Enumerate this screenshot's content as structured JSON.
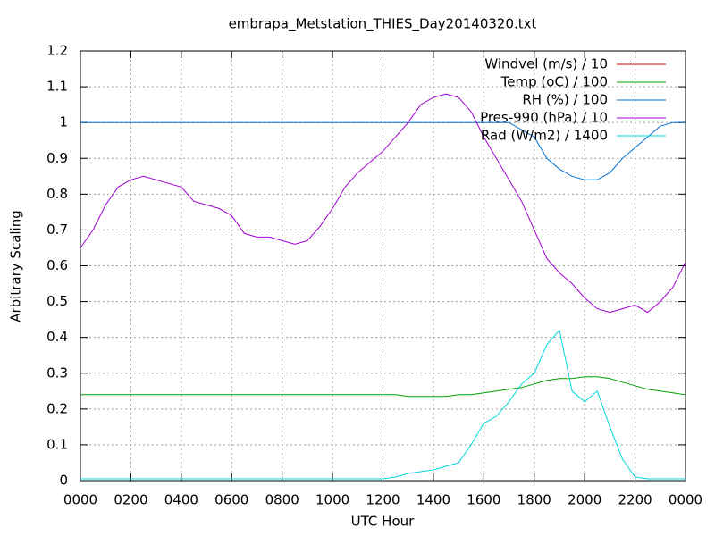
{
  "chart_data": {
    "type": "line",
    "title": "embrapa_Metstation_THIES_Day20140320.txt",
    "xlabel": "UTC Hour",
    "ylabel": "Arbitrary Scaling",
    "x": [
      0,
      0.5,
      1,
      1.5,
      2,
      2.5,
      3,
      3.5,
      4,
      4.5,
      5,
      5.5,
      6,
      6.5,
      7,
      7.5,
      8,
      8.5,
      9,
      9.5,
      10,
      10.5,
      11,
      11.5,
      12,
      12.5,
      13,
      13.5,
      14,
      14.5,
      15,
      15.5,
      16,
      16.5,
      17,
      17.5,
      18,
      18.5,
      19,
      19.5,
      20,
      20.5,
      21,
      21.5,
      22,
      22.5,
      23,
      23.5,
      24
    ],
    "series": [
      {
        "name": "Windvel (m/s) / 10",
        "color": "#e00000",
        "values": [
          null,
          null,
          null,
          null,
          null,
          null,
          null,
          null,
          null,
          null,
          null,
          null,
          null,
          null,
          null,
          null,
          null,
          null,
          null,
          null,
          null,
          null,
          null,
          null,
          null,
          null,
          null,
          null,
          null,
          null,
          null,
          null,
          null,
          null,
          null,
          null,
          null,
          null,
          null,
          null,
          null,
          null,
          null,
          null,
          null,
          null,
          null,
          null,
          null
        ]
      },
      {
        "name": "Temp (oC) / 100",
        "color": "#00a000",
        "values": [
          0.24,
          0.24,
          0.24,
          0.24,
          0.24,
          0.24,
          0.24,
          0.24,
          0.24,
          0.24,
          0.24,
          0.24,
          0.24,
          0.24,
          0.24,
          0.24,
          0.24,
          0.24,
          0.24,
          0.24,
          0.24,
          0.24,
          0.24,
          0.24,
          0.24,
          0.24,
          0.235,
          0.235,
          0.235,
          0.235,
          0.24,
          0.24,
          0.245,
          0.25,
          0.255,
          0.26,
          0.27,
          0.28,
          0.285,
          0.285,
          0.29,
          0.29,
          0.285,
          0.275,
          0.265,
          0.255,
          0.25,
          0.245,
          0.24
        ]
      },
      {
        "name": "RH (%) / 100",
        "color": "#0070d0",
        "values": [
          1,
          1,
          1,
          1,
          1,
          1,
          1,
          1,
          1,
          1,
          1,
          1,
          1,
          1,
          1,
          1,
          1,
          1,
          1,
          1,
          1,
          1,
          1,
          1,
          1,
          1,
          1,
          1,
          1,
          1,
          1,
          1,
          1,
          1,
          1,
          0.98,
          0.96,
          0.9,
          0.87,
          0.85,
          0.84,
          0.84,
          0.86,
          0.9,
          0.93,
          0.96,
          0.99,
          1,
          1
        ]
      },
      {
        "name": "Pres-990 (hPa) / 10",
        "color": "#a000d0",
        "values": [
          0.65,
          0.7,
          0.77,
          0.82,
          0.84,
          0.85,
          0.84,
          0.83,
          0.82,
          0.78,
          0.77,
          0.76,
          0.74,
          0.69,
          0.68,
          0.68,
          0.67,
          0.66,
          0.67,
          0.71,
          0.76,
          0.82,
          0.86,
          0.89,
          0.92,
          0.96,
          1,
          1.05,
          1.07,
          1.08,
          1.07,
          1.03,
          0.96,
          0.9,
          0.84,
          0.78,
          0.7,
          0.62,
          0.58,
          0.55,
          0.51,
          0.48,
          0.47,
          0.48,
          0.49,
          0.47,
          0.5,
          0.54,
          0.61
        ]
      },
      {
        "name": "Rad (W/m2) / 1400",
        "color": "#00d8e0",
        "values": [
          0.005,
          0.005,
          0.005,
          0.005,
          0.005,
          0.005,
          0.005,
          0.005,
          0.005,
          0.005,
          0.005,
          0.005,
          0.005,
          0.005,
          0.005,
          0.005,
          0.005,
          0.005,
          0.005,
          0.005,
          0.005,
          0.005,
          0.005,
          0.005,
          0.005,
          0.01,
          0.02,
          0.025,
          0.03,
          0.04,
          0.05,
          0.1,
          0.16,
          0.18,
          0.22,
          0.27,
          0.3,
          0.38,
          0.42,
          0.25,
          0.22,
          0.25,
          0.15,
          0.06,
          0.01,
          0.005,
          0.005,
          0.005,
          0.005
        ]
      }
    ],
    "xlim": [
      0,
      24
    ],
    "xticks": [
      {
        "value": 0,
        "label": "0000"
      },
      {
        "value": 2,
        "label": "0200"
      },
      {
        "value": 4,
        "label": "0400"
      },
      {
        "value": 6,
        "label": "0600"
      },
      {
        "value": 8,
        "label": "0800"
      },
      {
        "value": 10,
        "label": "1000"
      },
      {
        "value": 12,
        "label": "1200"
      },
      {
        "value": 14,
        "label": "1400"
      },
      {
        "value": 16,
        "label": "1600"
      },
      {
        "value": 18,
        "label": "1800"
      },
      {
        "value": 20,
        "label": "2000"
      },
      {
        "value": 22,
        "label": "2200"
      },
      {
        "value": 24,
        "label": "0000"
      }
    ],
    "ylim": [
      0,
      1.2
    ],
    "yticks": [
      0,
      0.1,
      0.2,
      0.3,
      0.4,
      0.5,
      0.6,
      0.7,
      0.8,
      0.9,
      1,
      1.1,
      1.2
    ],
    "grid": true,
    "legend": "top-right"
  }
}
